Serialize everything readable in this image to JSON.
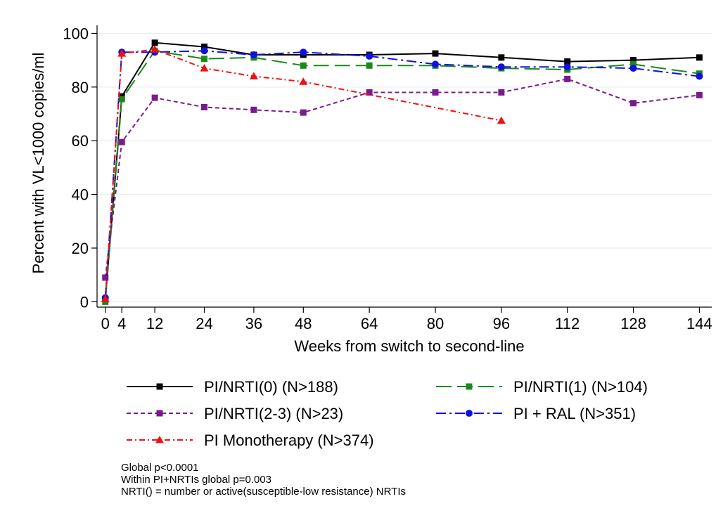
{
  "chart_data": {
    "type": "line",
    "xlabel": "Weeks from switch to second-line",
    "ylabel": "Percent with VL<1000 copies/ml",
    "xticks": [
      0,
      4,
      12,
      24,
      36,
      48,
      64,
      80,
      96,
      112,
      128,
      144
    ],
    "yticks": [
      0,
      20,
      40,
      60,
      80,
      100
    ],
    "xlim": [
      -2,
      147
    ],
    "ylim": [
      -2,
      103
    ],
    "grid": true,
    "legend_position": "bottom",
    "series": [
      {
        "name": "PI/NRTI(0) (N>188)",
        "color": "#000000",
        "dash": "solid",
        "marker": "square",
        "x": [
          0,
          4,
          12,
          24,
          36,
          48,
          64,
          80,
          96,
          112,
          128,
          144
        ],
        "y": [
          1,
          76.5,
          96.5,
          95,
          92,
          92,
          92,
          92.5,
          91,
          89.5,
          90,
          91
        ]
      },
      {
        "name": "PI/NRTI(1) (N>104)",
        "color": "#1a8a1a",
        "dash": "longdash",
        "marker": "square",
        "x": [
          0,
          4,
          12,
          24,
          36,
          48,
          64,
          80,
          96,
          112,
          128,
          144
        ],
        "y": [
          0,
          75.5,
          93.5,
          90.5,
          91,
          88,
          88,
          88,
          87,
          86.5,
          88.5,
          85
        ]
      },
      {
        "name": "PI/NRTI(2-3) (N>23)",
        "color": "#7b1a8e",
        "dash": "shortdash",
        "marker": "square",
        "x": [
          0,
          4,
          12,
          24,
          36,
          48,
          64,
          80,
          96,
          112,
          128,
          144
        ],
        "y": [
          9,
          59.5,
          76,
          72.5,
          71.5,
          70.5,
          78,
          78,
          78,
          83,
          74,
          77
        ]
      },
      {
        "name": "PI + RAL (N>351)",
        "color": "#1010e0",
        "dash": "dashdot",
        "marker": "circle",
        "x": [
          0,
          4,
          12,
          24,
          36,
          48,
          64,
          80,
          96,
          112,
          128,
          144
        ],
        "y": [
          1.5,
          93,
          93,
          93.5,
          92,
          93,
          91.5,
          88.5,
          87.5,
          87.5,
          87,
          84
        ]
      },
      {
        "name": "PI Monotherapy (N>374)",
        "color": "#ee1111",
        "dash": "dashdotshort",
        "marker": "triangle",
        "x": [
          0,
          4,
          12,
          24,
          36,
          48,
          96
        ],
        "y": [
          1,
          92.5,
          94,
          87,
          84,
          82,
          67.5
        ]
      }
    ]
  },
  "notes": [
    "Global p<0.0001",
    "Within PI+NRTIs global p=0.003",
    "NRTI() = number or active(susceptible-low resistance) NRTIs"
  ]
}
